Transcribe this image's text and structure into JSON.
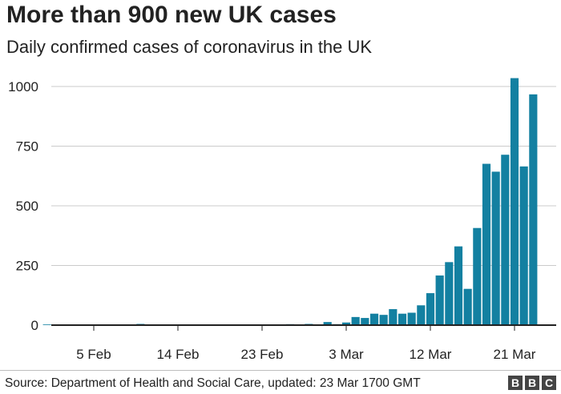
{
  "header": {
    "title": "More than 900 new UK cases",
    "subtitle": "Daily confirmed cases of coronavirus in the UK"
  },
  "footer": {
    "source": "Source: Department of Health and Social Care, updated:  23 Mar 1700 GMT",
    "logo_letters": [
      "B",
      "B",
      "C"
    ]
  },
  "colors": {
    "bar": "#1380A1",
    "grid": "#cbcbcb",
    "baseline": "#222222",
    "text": "#222222"
  },
  "chart_data": {
    "type": "bar",
    "title": "More than 900 new UK cases",
    "subtitle": "Daily confirmed cases of coronavirus in the UK",
    "xlabel": "",
    "ylabel": "",
    "ylim": [
      0,
      1100
    ],
    "y_ticks": [
      0,
      250,
      500,
      750,
      1000
    ],
    "x_domain": [
      "2020-01-27",
      "2020-03-23"
    ],
    "x_ticks": [
      {
        "date": "2020-02-05",
        "label": "5 Feb"
      },
      {
        "date": "2020-02-14",
        "label": "14 Feb"
      },
      {
        "date": "2020-02-23",
        "label": "23 Feb"
      },
      {
        "date": "2020-03-03",
        "label": "3 Mar"
      },
      {
        "date": "2020-03-12",
        "label": "12 Mar"
      },
      {
        "date": "2020-03-21",
        "label": "21 Mar"
      }
    ],
    "grid": true,
    "legend": "none",
    "bars": [
      {
        "date": "2020-01-31",
        "value": 2
      },
      {
        "date": "2020-02-06",
        "value": 1
      },
      {
        "date": "2020-02-10",
        "value": 5
      },
      {
        "date": "2020-02-11",
        "value": 1
      },
      {
        "date": "2020-02-26",
        "value": 4
      },
      {
        "date": "2020-02-27",
        "value": 2
      },
      {
        "date": "2020-02-28",
        "value": 5
      },
      {
        "date": "2020-02-29",
        "value": 3
      },
      {
        "date": "2020-03-01",
        "value": 13
      },
      {
        "date": "2020-03-02",
        "value": 4
      },
      {
        "date": "2020-03-03",
        "value": 11
      },
      {
        "date": "2020-03-04",
        "value": 34
      },
      {
        "date": "2020-03-05",
        "value": 30
      },
      {
        "date": "2020-03-06",
        "value": 48
      },
      {
        "date": "2020-03-07",
        "value": 43
      },
      {
        "date": "2020-03-08",
        "value": 67
      },
      {
        "date": "2020-03-09",
        "value": 48
      },
      {
        "date": "2020-03-10",
        "value": 52
      },
      {
        "date": "2020-03-11",
        "value": 83
      },
      {
        "date": "2020-03-12",
        "value": 134
      },
      {
        "date": "2020-03-13",
        "value": 208
      },
      {
        "date": "2020-03-14",
        "value": 264
      },
      {
        "date": "2020-03-15",
        "value": 330
      },
      {
        "date": "2020-03-16",
        "value": 152
      },
      {
        "date": "2020-03-17",
        "value": 407
      },
      {
        "date": "2020-03-18",
        "value": 676
      },
      {
        "date": "2020-03-19",
        "value": 643
      },
      {
        "date": "2020-03-20",
        "value": 714
      },
      {
        "date": "2020-03-21",
        "value": 1035
      },
      {
        "date": "2020-03-22",
        "value": 665
      },
      {
        "date": "2020-03-23",
        "value": 967
      }
    ]
  }
}
